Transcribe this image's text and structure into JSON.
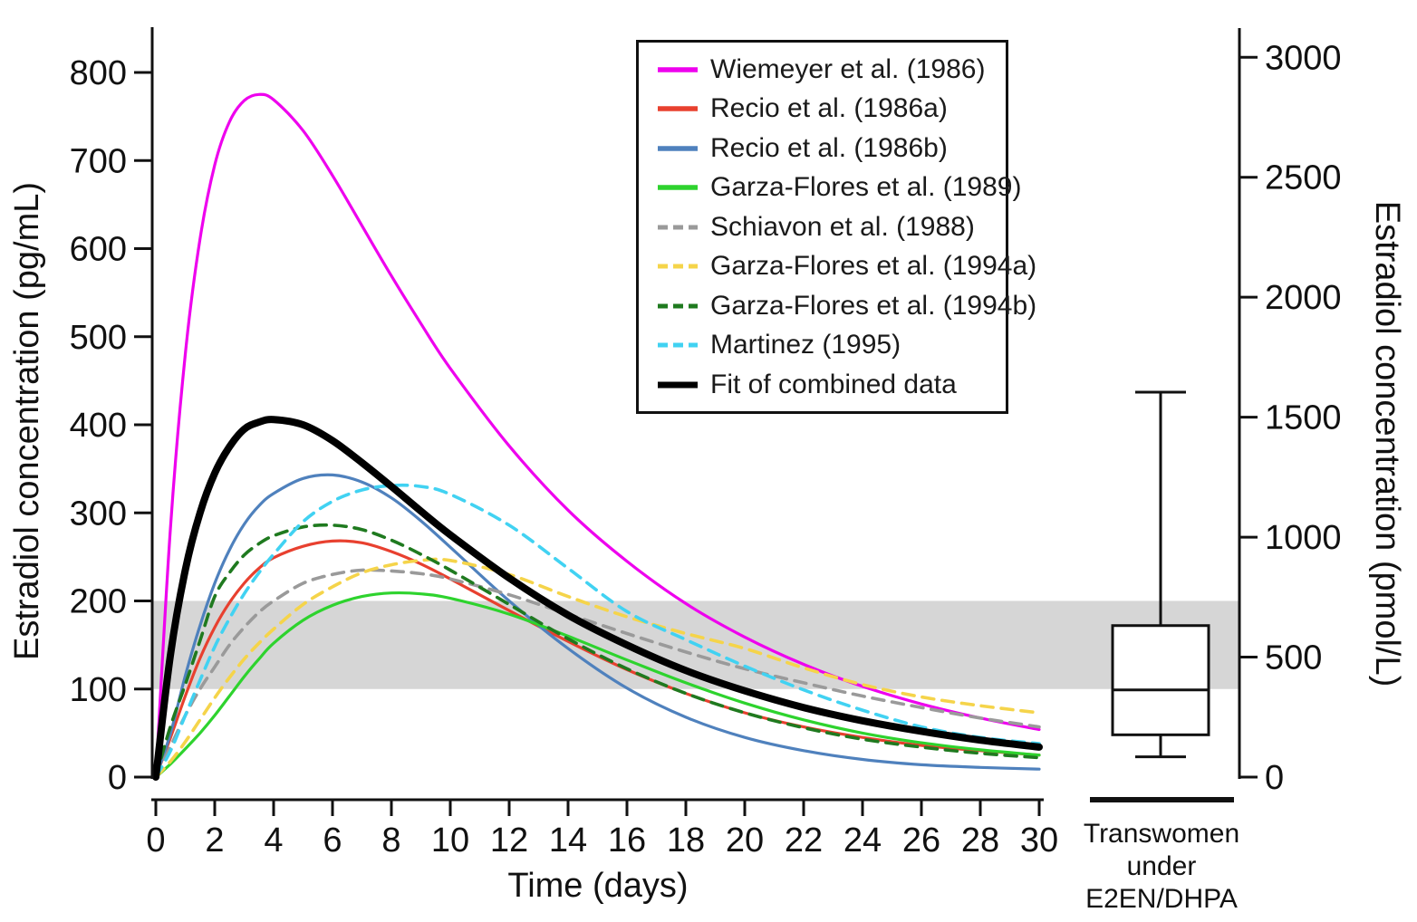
{
  "figure": {
    "left_axis_title": "Estradiol concentration (pg/mL)",
    "right_axis_title": "Estradiol concentration (pmol/L)",
    "x_axis_title": "Time (days)"
  },
  "chart_data": {
    "type": "line",
    "x_axis": {
      "label": "Time (days)",
      "range": [
        0,
        30
      ],
      "ticks": [
        0,
        2,
        4,
        6,
        8,
        10,
        12,
        14,
        16,
        18,
        20,
        22,
        24,
        26,
        28,
        30
      ]
    },
    "y_axis_left": {
      "label": "Estradiol concentration (pg/mL)",
      "range": [
        0,
        850
      ],
      "ticks": [
        0,
        100,
        200,
        300,
        400,
        500,
        600,
        700,
        800
      ]
    },
    "y_axis_right": {
      "label": "Estradiol concentration (pmol/L)",
      "range": [
        0,
        3120
      ],
      "ticks": [
        0,
        500,
        1000,
        1500,
        2000,
        2500,
        3000
      ],
      "pmol_per_pg": 3.671
    },
    "reference_band": {
      "low_pg": 100,
      "high_pg": 200,
      "color": "#d6d6d6"
    },
    "legend_position": "top-center",
    "grid": false,
    "x": [
      0,
      0.5,
      1,
      1.5,
      2,
      2.5,
      3,
      3.5,
      4,
      5,
      6,
      7,
      8,
      9,
      10,
      12,
      14,
      16,
      18,
      20,
      22,
      24,
      26,
      28,
      30
    ],
    "series": [
      {
        "name": "Wiemeyer et al. (1986)",
        "color": "#ee00ee",
        "dash": "solid",
        "width": 3.2,
        "values": [
          0,
          285,
          480,
          611,
          695,
          744,
          768,
          775,
          769,
          734,
          683,
          626,
          569,
          515,
          464,
          376,
          303,
          245,
          197,
          159,
          128,
          103,
          83,
          67,
          54
        ]
      },
      {
        "name": "Recio et al. (1986a)",
        "color": "#e8402f",
        "dash": "solid",
        "width": 3.2,
        "values": [
          0,
          45,
          92,
          135,
          170,
          198,
          220,
          237,
          249,
          262,
          268,
          266,
          256,
          242,
          225,
          189,
          154,
          122,
          95,
          73,
          57,
          45,
          36,
          30,
          25
        ]
      },
      {
        "name": "Recio et al. (1986b)",
        "color": "#4f81bd",
        "dash": "solid",
        "width": 3.2,
        "values": [
          0,
          50,
          115,
          172,
          220,
          258,
          287,
          308,
          322,
          339,
          343,
          335,
          317,
          291,
          261,
          200,
          146,
          101,
          68,
          45,
          30,
          20,
          14,
          11,
          9
        ]
      },
      {
        "name": "Garza-Flores et al. (1989)",
        "color": "#2ed32e",
        "dash": "solid",
        "width": 3.2,
        "values": [
          0,
          15,
          32,
          50,
          70,
          92,
          114,
          134,
          152,
          178,
          195,
          205,
          209,
          208,
          203,
          185,
          160,
          133,
          107,
          84,
          65,
          50,
          39,
          31,
          25
        ]
      },
      {
        "name": "Schiavon et al. (1988)",
        "color": "#9a9a9a",
        "dash": "dashed",
        "width": 3.6,
        "values": [
          0,
          35,
          70,
          100,
          125,
          150,
          170,
          187,
          200,
          220,
          230,
          235,
          234,
          231,
          225,
          207,
          185,
          163,
          142,
          123,
          107,
          92,
          79,
          67,
          57
        ]
      },
      {
        "name": "Garza-Flores et al. (1994a)",
        "color": "#f5d44a",
        "dash": "dashed",
        "width": 3.6,
        "values": [
          0,
          18,
          40,
          65,
          90,
          113,
          134,
          152,
          168,
          196,
          216,
          232,
          241,
          246,
          246,
          230,
          205,
          182,
          163,
          146,
          124,
          105,
          91,
          81,
          73
        ]
      },
      {
        "name": "Garza-Flores et al. (1994b)",
        "color": "#1f7a1f",
        "dash": "dashed",
        "width": 3.6,
        "values": [
          0,
          58,
          105,
          155,
          205,
          232,
          252,
          265,
          274,
          284,
          286,
          281,
          269,
          253,
          235,
          196,
          157,
          123,
          95,
          73,
          56,
          43,
          34,
          27,
          22
        ]
      },
      {
        "name": "Martinez (1995)",
        "color": "#41d2f2",
        "dash": "dashed",
        "width": 3.6,
        "values": [
          0,
          30,
          70,
          110,
          148,
          180,
          208,
          232,
          253,
          290,
          313,
          326,
          331,
          330,
          321,
          286,
          237,
          188,
          156,
          126,
          99,
          76,
          57,
          45,
          38
        ]
      },
      {
        "name": "Fit of combined data",
        "color": "#000000",
        "dash": "solid",
        "width": 8,
        "values": [
          0,
          140,
          235,
          300,
          345,
          375,
          395,
          403,
          406,
          400,
          382,
          357,
          330,
          302,
          275,
          226,
          184,
          150,
          121,
          98,
          79,
          64,
          52,
          42,
          34
        ]
      }
    ],
    "boxplot": {
      "group_label_lines": [
        "Transwomen",
        "under",
        "E2EN/DHPA"
      ],
      "unit": "pg/mL",
      "whisker_low": 23,
      "q1": 48,
      "median": 99,
      "q3": 172,
      "whisker_high": 437
    }
  }
}
